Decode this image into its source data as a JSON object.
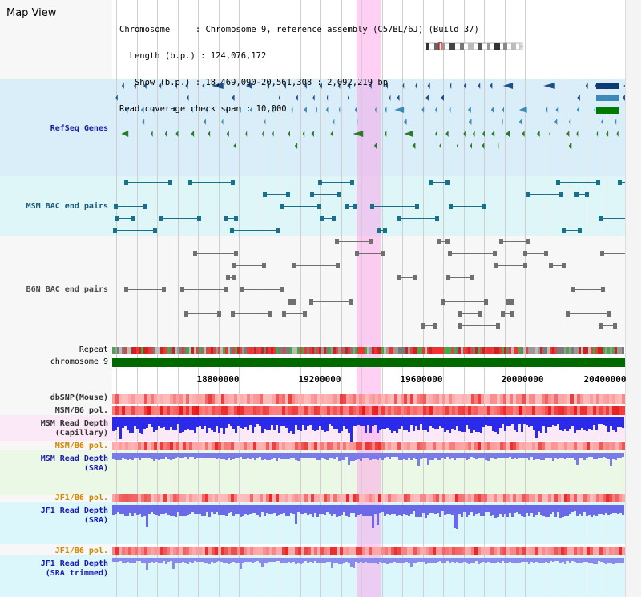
{
  "page": {
    "title": "Map View"
  },
  "info": {
    "chromosome_line": "Chromosome     : Chromosome 9, reference assembly (C57BL/6J) (Build 37)",
    "length_line": "  Length (b.p.) : 124,076,172",
    "show_line": "   Show (b.p.) : 18,469,090-20,561,308 : 2,092,219 bp",
    "coverage_line": "Read coverage check span : 10,000"
  },
  "tracks": {
    "refseq": "RefSeq Genes",
    "msm_bac": "MSM BAC end pairs",
    "b6n_bac": "B6N BAC end pairs",
    "repeat": "Repeat",
    "chromosome": "chromosome 9",
    "dbsnp": "dbSNP(Mouse)",
    "msm_b6_pol_1": "MSM/B6 pol.",
    "msm_read_depth_cap": "MSM Read Depth\n(Capillary)",
    "msm_b6_pol_2": "MSM/B6 pol.",
    "msm_read_depth_sra": "MSM Read Depth\n(SRA)",
    "jf1_b6_pol_1": "JF1/B6 pol.",
    "jf1_read_depth_sra": "JF1 Read Depth\n(SRA)",
    "jf1_b6_pol_2": "JF1/B6 pol.",
    "jf1_read_depth_trim": "JF1 Read Depth\n(SRA trimmed)"
  },
  "axis": {
    "ticks": [
      "18800000",
      "19200000",
      "19600000",
      "20000000",
      "20400000"
    ]
  },
  "colors": {
    "refseq_label": "#1a1aa0",
    "msm_bac_label": "#1a5a7a",
    "b6n_label": "#4a4a4a",
    "pol_label": "#d08a00",
    "depth_label": "#1a1ab0",
    "refseq_bg": "#d9eef9",
    "msm_bac_bg": "#dff6f9",
    "chromosome": "#006a00"
  }
}
